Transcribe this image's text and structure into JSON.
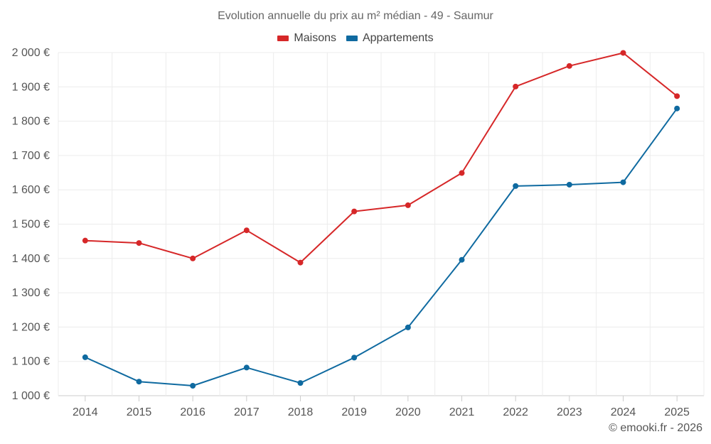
{
  "chart_data": {
    "type": "line",
    "title": "Evolution annuelle du prix au m² médian - 49 - Saumur",
    "categories": [
      "2014",
      "2015",
      "2016",
      "2017",
      "2018",
      "2019",
      "2020",
      "2021",
      "2022",
      "2023",
      "2024",
      "2025"
    ],
    "series": [
      {
        "name": "Maisons",
        "color": "#d62728",
        "values": [
          1452,
          1445,
          1400,
          1482,
          1388,
          1537,
          1555,
          1649,
          1901,
          1961,
          1999,
          1873
        ]
      },
      {
        "name": "Appartements",
        "color": "#0f6aa0",
        "values": [
          1112,
          1041,
          1029,
          1082,
          1037,
          1111,
          1199,
          1396,
          1611,
          1615,
          1622,
          1837
        ]
      }
    ],
    "ylim": [
      1000,
      2000
    ],
    "yticks": [
      1000,
      1100,
      1200,
      1300,
      1400,
      1500,
      1600,
      1700,
      1800,
      1900,
      2000
    ],
    "ytick_labels": [
      "1 000 €",
      "1 100 €",
      "1 200 €",
      "1 300 €",
      "1 400 €",
      "1 500 €",
      "1 600 €",
      "1 700 €",
      "1 800 €",
      "1 900 €",
      "2 000 €"
    ],
    "xlabel": "",
    "ylabel": "",
    "grid": true,
    "legend_position": "top-center"
  },
  "credit": "© emooki.fr - 2026"
}
